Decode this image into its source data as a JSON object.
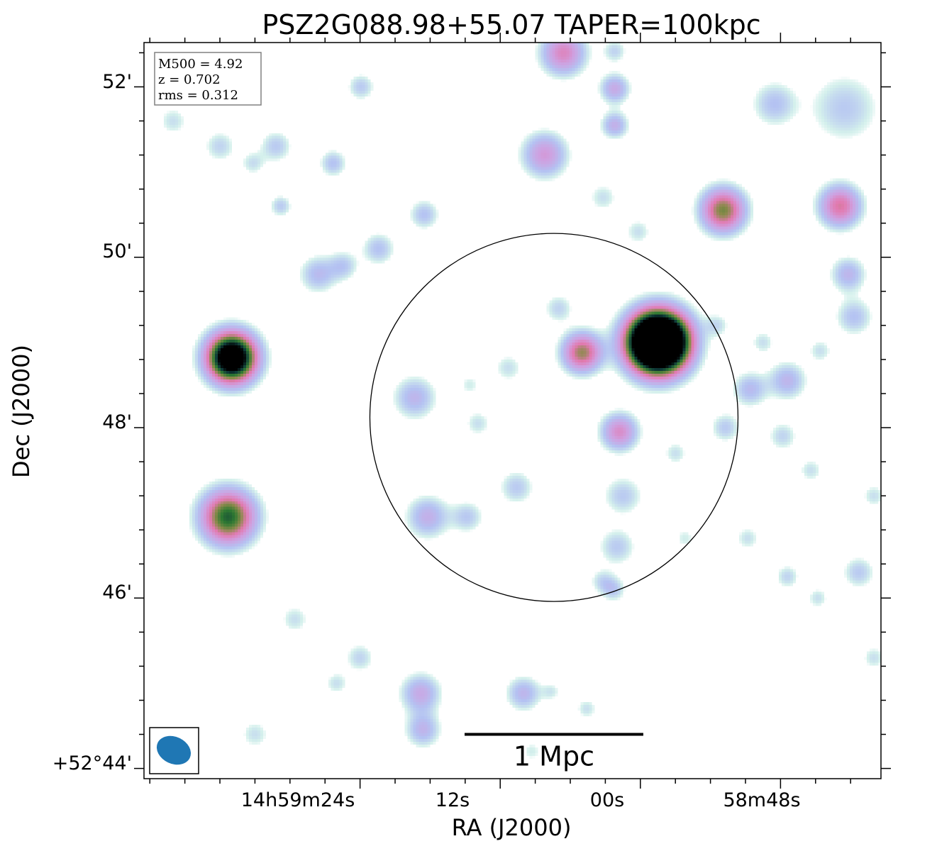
{
  "chart_data": {
    "type": "heatmap",
    "title": "PSZ2G088.98+55.07 TAPER=100kpc",
    "xlabel": "RA (J2000)",
    "ylabel": "Dec (J2000)",
    "x_tick_labels": [
      "14h59m24s",
      "12s",
      "00s",
      "58m48s"
    ],
    "y_tick_labels": [
      "+52°44'",
      "46'",
      "48'",
      "50'",
      "52'"
    ],
    "y_tick_values_arcmin": [
      44,
      46,
      48,
      50,
      52
    ],
    "x_tick_values_sec": [
      24,
      12,
      0,
      -12
    ],
    "xlim_sec": [
      42.5,
      -20.6
    ],
    "ylim_arcmin": [
      43.88,
      52.52
    ],
    "info_box": [
      "M500 = 4.92",
      "z = 0.702",
      "rms = 0.312"
    ],
    "scale_bar_label": "1 Mpc",
    "scale_bar_length_sec": 15.3,
    "scale_bar_center_sec": 7.4,
    "scale_bar_dec_arcmin": 44.4,
    "circle": {
      "center_sec": 7.4,
      "center_arcmin": 48.12,
      "radius_arcmin": 2.16
    },
    "beam": {
      "label": "beam",
      "major_arcmin": 0.38,
      "minor_arcmin": 0.28,
      "angle_deg": 25,
      "color": "#1f77b4"
    },
    "sources": [
      {
        "ra_sec": -1.5,
        "dec_arcmin": 49.0,
        "sigma_arcmin": 0.24,
        "amp": 9.0
      },
      {
        "ra_sec": 35.0,
        "dec_arcmin": 48.82,
        "sigma_arcmin": 0.2,
        "amp": 5.5
      },
      {
        "ra_sec": 35.3,
        "dec_arcmin": 46.95,
        "sigma_arcmin": 0.22,
        "amp": 3.4
      },
      {
        "ra_sec": 5.0,
        "dec_arcmin": 48.88,
        "sigma_arcmin": 0.16,
        "amp": 2.6
      },
      {
        "ra_sec": -7.1,
        "dec_arcmin": 50.55,
        "sigma_arcmin": 0.18,
        "amp": 2.8
      },
      {
        "ra_sec": -17.1,
        "dec_arcmin": 50.6,
        "sigma_arcmin": 0.17,
        "amp": 2.2
      },
      {
        "ra_sec": 1.8,
        "dec_arcmin": 47.95,
        "sigma_arcmin": 0.15,
        "amp": 1.8
      },
      {
        "ra_sec": 8.2,
        "dec_arcmin": 51.2,
        "sigma_arcmin": 0.18,
        "amp": 1.6
      },
      {
        "ra_sec": 6.6,
        "dec_arcmin": 52.4,
        "sigma_arcmin": 0.18,
        "amp": 1.9
      },
      {
        "ra_sec": 2.2,
        "dec_arcmin": 51.98,
        "sigma_arcmin": 0.12,
        "amp": 1.3
      },
      {
        "ra_sec": 2.2,
        "dec_arcmin": 51.55,
        "sigma_arcmin": 0.11,
        "amp": 1.2
      },
      {
        "ra_sec": 18.8,
        "dec_arcmin": 44.88,
        "sigma_arcmin": 0.16,
        "amp": 1.3
      },
      {
        "ra_sec": 18.6,
        "dec_arcmin": 44.45,
        "sigma_arcmin": 0.14,
        "amp": 1.1
      },
      {
        "ra_sec": 10.0,
        "dec_arcmin": 44.88,
        "sigma_arcmin": 0.14,
        "amp": 1.1
      },
      {
        "ra_sec": 18.2,
        "dec_arcmin": 46.95,
        "sigma_arcmin": 0.17,
        "amp": 1.2
      },
      {
        "ra_sec": 19.3,
        "dec_arcmin": 48.35,
        "sigma_arcmin": 0.17,
        "amp": 1.1
      },
      {
        "ra_sec": -12.6,
        "dec_arcmin": 48.55,
        "sigma_arcmin": 0.15,
        "amp": 1.1
      },
      {
        "ra_sec": -9.4,
        "dec_arcmin": 48.45,
        "sigma_arcmin": 0.14,
        "amp": 1.0
      },
      {
        "ra_sec": -17.8,
        "dec_arcmin": 49.8,
        "sigma_arcmin": 0.14,
        "amp": 1.1
      },
      {
        "ra_sec": -17.5,
        "dec_arcmin": 51.75,
        "sigma_arcmin": 0.28,
        "amp": 0.8
      },
      {
        "ra_sec": -11.5,
        "dec_arcmin": 51.8,
        "sigma_arcmin": 0.18,
        "amp": 0.9
      },
      {
        "ra_sec": 27.6,
        "dec_arcmin": 49.8,
        "sigma_arcmin": 0.15,
        "amp": 1.0
      },
      {
        "ra_sec": 25.4,
        "dec_arcmin": 49.9,
        "sigma_arcmin": 0.12,
        "amp": 0.8
      },
      {
        "ra_sec": 22.4,
        "dec_arcmin": 50.1,
        "sigma_arcmin": 0.13,
        "amp": 0.9
      },
      {
        "ra_sec": 31.2,
        "dec_arcmin": 51.3,
        "sigma_arcmin": 0.13,
        "amp": 0.8
      },
      {
        "ra_sec": 23.9,
        "dec_arcmin": 52.0,
        "sigma_arcmin": 0.11,
        "amp": 0.8
      },
      {
        "ra_sec": 26.3,
        "dec_arcmin": 51.1,
        "sigma_arcmin": 0.11,
        "amp": 0.9
      },
      {
        "ra_sec": 18.5,
        "dec_arcmin": 50.5,
        "sigma_arcmin": 0.12,
        "amp": 0.9
      },
      {
        "ra_sec": 30.8,
        "dec_arcmin": 50.6,
        "sigma_arcmin": 0.09,
        "amp": 0.8
      },
      {
        "ra_sec": 1.5,
        "dec_arcmin": 47.2,
        "sigma_arcmin": 0.16,
        "amp": 0.8
      },
      {
        "ra_sec": 2.0,
        "dec_arcmin": 46.6,
        "sigma_arcmin": 0.15,
        "amp": 0.8
      },
      {
        "ra_sec": 2.3,
        "dec_arcmin": 46.1,
        "sigma_arcmin": 0.1,
        "amp": 0.8
      },
      {
        "ra_sec": 14.8,
        "dec_arcmin": 46.95,
        "sigma_arcmin": 0.13,
        "amp": 0.8
      },
      {
        "ra_sec": 10.6,
        "dec_arcmin": 47.3,
        "sigma_arcmin": 0.14,
        "amp": 0.8
      },
      {
        "ra_sec": 7.0,
        "dec_arcmin": 49.4,
        "sigma_arcmin": 0.12,
        "amp": 0.7
      },
      {
        "ra_sec": -7.3,
        "dec_arcmin": 48.0,
        "sigma_arcmin": 0.12,
        "amp": 0.8
      },
      {
        "ra_sec": -12.2,
        "dec_arcmin": 47.9,
        "sigma_arcmin": 0.12,
        "amp": 0.7
      },
      {
        "ra_sec": -18.3,
        "dec_arcmin": 49.3,
        "sigma_arcmin": 0.15,
        "amp": 0.9
      },
      {
        "ra_sec": 36.0,
        "dec_arcmin": 51.3,
        "sigma_arcmin": 0.13,
        "amp": 0.7
      },
      {
        "ra_sec": -18.7,
        "dec_arcmin": 46.3,
        "sigma_arcmin": 0.13,
        "amp": 0.8
      },
      {
        "ra_sec": -12.6,
        "dec_arcmin": 46.25,
        "sigma_arcmin": 0.1,
        "amp": 0.7
      },
      {
        "ra_sec": 24.0,
        "dec_arcmin": 45.3,
        "sigma_arcmin": 0.12,
        "amp": 0.7
      },
      {
        "ra_sec": 11.3,
        "dec_arcmin": 48.7,
        "sigma_arcmin": 0.12,
        "amp": 0.6
      },
      {
        "ra_sec": 13.9,
        "dec_arcmin": 48.05,
        "sigma_arcmin": 0.11,
        "amp": 0.6
      },
      {
        "ra_sec": 3.2,
        "dec_arcmin": 50.7,
        "sigma_arcmin": 0.12,
        "amp": 0.6
      },
      {
        "ra_sec": 0.2,
        "dec_arcmin": 50.3,
        "sigma_arcmin": 0.11,
        "amp": 0.6
      },
      {
        "ra_sec": -6.6,
        "dec_arcmin": 49.2,
        "sigma_arcmin": 0.1,
        "amp": 0.6
      },
      {
        "ra_sec": -10.5,
        "dec_arcmin": 49.0,
        "sigma_arcmin": 0.1,
        "amp": 0.6
      },
      {
        "ra_sec": -15.4,
        "dec_arcmin": 48.9,
        "sigma_arcmin": 0.1,
        "amp": 0.6
      },
      {
        "ra_sec": -9.2,
        "dec_arcmin": 46.7,
        "sigma_arcmin": 0.1,
        "amp": 0.6
      },
      {
        "ra_sec": -14.6,
        "dec_arcmin": 47.5,
        "sigma_arcmin": 0.1,
        "amp": 0.6
      },
      {
        "ra_sec": -20.0,
        "dec_arcmin": 47.2,
        "sigma_arcmin": 0.1,
        "amp": 0.6
      },
      {
        "ra_sec": 29.6,
        "dec_arcmin": 45.75,
        "sigma_arcmin": 0.12,
        "amp": 0.6
      },
      {
        "ra_sec": 33.0,
        "dec_arcmin": 44.4,
        "sigma_arcmin": 0.12,
        "amp": 0.6
      },
      {
        "ra_sec": 26.0,
        "dec_arcmin": 45.0,
        "sigma_arcmin": 0.1,
        "amp": 0.6
      },
      {
        "ra_sec": 3.3,
        "dec_arcmin": 46.2,
        "sigma_arcmin": 0.1,
        "amp": 0.6
      },
      {
        "ra_sec": 4.6,
        "dec_arcmin": 44.7,
        "sigma_arcmin": 0.09,
        "amp": 0.6
      },
      {
        "ra_sec": 9.3,
        "dec_arcmin": 44.2,
        "sigma_arcmin": 0.09,
        "amp": 0.5
      },
      {
        "ra_sec": -15.2,
        "dec_arcmin": 46.0,
        "sigma_arcmin": 0.09,
        "amp": 0.6
      },
      {
        "ra_sec": 14.6,
        "dec_arcmin": 48.5,
        "sigma_arcmin": 0.09,
        "amp": 0.5
      },
      {
        "ra_sec": -3.0,
        "dec_arcmin": 47.7,
        "sigma_arcmin": 0.1,
        "amp": 0.6
      },
      {
        "ra_sec": 7.6,
        "dec_arcmin": 44.9,
        "sigma_arcmin": 0.08,
        "amp": 0.5
      },
      {
        "ra_sec": -3.8,
        "dec_arcmin": 46.7,
        "sigma_arcmin": 0.09,
        "amp": 0.5
      },
      {
        "ra_sec": 2.2,
        "dec_arcmin": 52.42,
        "sigma_arcmin": 0.1,
        "amp": 0.7
      },
      {
        "ra_sec": 40.0,
        "dec_arcmin": 51.6,
        "sigma_arcmin": 0.12,
        "amp": 0.6
      },
      {
        "ra_sec": 33.2,
        "dec_arcmin": 51.1,
        "sigma_arcmin": 0.1,
        "amp": 0.6
      },
      {
        "ra_sec": -20.0,
        "dec_arcmin": 45.3,
        "sigma_arcmin": 0.1,
        "amp": 0.6
      }
    ],
    "colormap": [
      [
        0.0,
        "#ffffff"
      ],
      [
        0.18,
        "#d4f0ec"
      ],
      [
        0.38,
        "#b4c2f2"
      ],
      [
        0.55,
        "#cfa0e0"
      ],
      [
        0.68,
        "#e27ab0"
      ],
      [
        0.78,
        "#8a8a4a"
      ],
      [
        0.86,
        "#2f7a32"
      ],
      [
        0.93,
        "#0f3b3a"
      ],
      [
        1.0,
        "#000000"
      ]
    ],
    "vmin": 0.35,
    "vmax": 4.2
  }
}
